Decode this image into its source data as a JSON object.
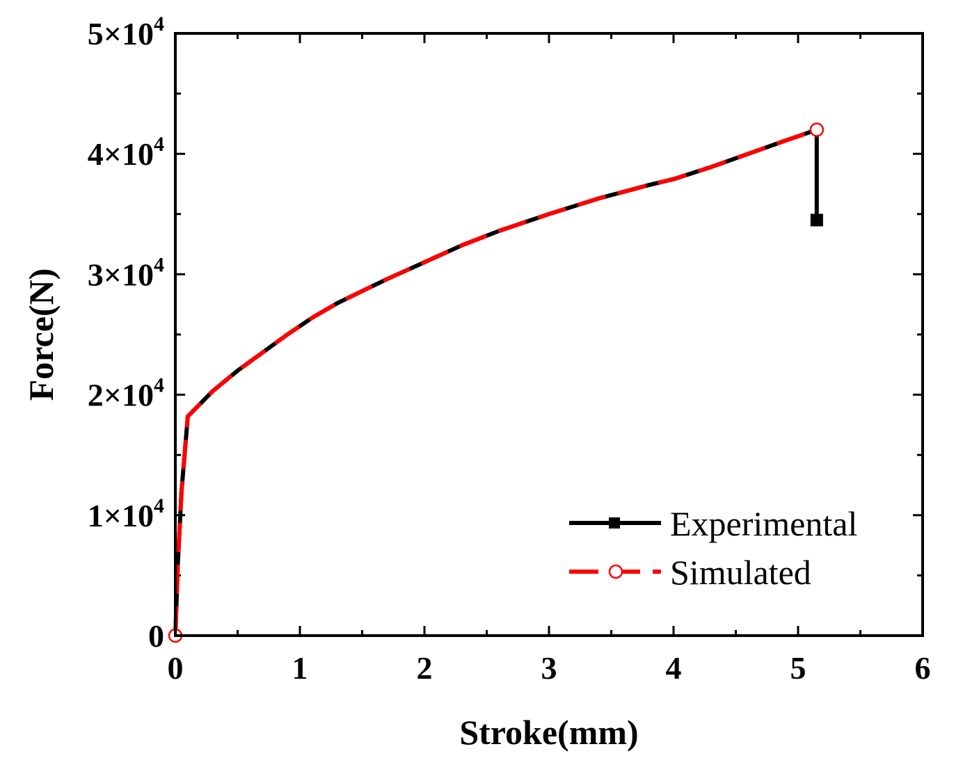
{
  "chart_data": {
    "type": "line",
    "title": "",
    "xlabel": "Stroke(mm)",
    "ylabel": "Force(N)",
    "xlim": [
      0,
      6
    ],
    "ylim": [
      0,
      50000
    ],
    "x_ticks": [
      {
        "value": 0,
        "label": "0"
      },
      {
        "value": 1,
        "label": "1"
      },
      {
        "value": 2,
        "label": "2"
      },
      {
        "value": 3,
        "label": "3"
      },
      {
        "value": 4,
        "label": "4"
      },
      {
        "value": 5,
        "label": "5"
      },
      {
        "value": 6,
        "label": "6"
      }
    ],
    "y_ticks": [
      {
        "value": 0,
        "mantissa": "0",
        "exp": ""
      },
      {
        "value": 10000,
        "mantissa": "1×10",
        "exp": "4"
      },
      {
        "value": 20000,
        "mantissa": "2×10",
        "exp": "4"
      },
      {
        "value": 30000,
        "mantissa": "3×10",
        "exp": "4"
      },
      {
        "value": 40000,
        "mantissa": "4×10",
        "exp": "4"
      },
      {
        "value": 50000,
        "mantissa": "5×10",
        "exp": "4"
      }
    ],
    "legend_position": "bottom-right",
    "series": [
      {
        "name": "Experimental",
        "color": "#000000",
        "marker": "square",
        "x": [
          0,
          0.02,
          0.05,
          0.1,
          0.3,
          0.5,
          0.7,
          0.9,
          1.1,
          1.3,
          1.5,
          1.7,
          2.0,
          2.3,
          2.6,
          3.0,
          3.4,
          3.8,
          4.0,
          4.3,
          4.6,
          4.9,
          5.15,
          5.15
        ],
        "y": [
          0,
          6000,
          12000,
          18200,
          20300,
          22000,
          23500,
          25000,
          26400,
          27600,
          28600,
          29600,
          31000,
          32400,
          33600,
          35000,
          36300,
          37400,
          37900,
          38900,
          40000,
          41100,
          42000,
          34500
        ],
        "marker_points": [
          [
            5.15,
            34500
          ]
        ]
      },
      {
        "name": "Simulated",
        "color": "#ff0000",
        "marker": "circle-open",
        "x": [
          0,
          0.02,
          0.05,
          0.1,
          0.3,
          0.5,
          0.7,
          0.9,
          1.1,
          1.3,
          1.5,
          1.7,
          2.0,
          2.3,
          2.6,
          3.0,
          3.4,
          3.8,
          4.0,
          4.3,
          4.6,
          4.9,
          5.15
        ],
        "y": [
          0,
          6000,
          12000,
          18200,
          20300,
          22000,
          23500,
          25000,
          26400,
          27600,
          28600,
          29600,
          31000,
          32400,
          33600,
          35000,
          36300,
          37400,
          37900,
          38900,
          40000,
          41100,
          42000
        ],
        "marker_points": [
          [
            0,
            0
          ],
          [
            5.15,
            42000
          ]
        ]
      }
    ]
  }
}
